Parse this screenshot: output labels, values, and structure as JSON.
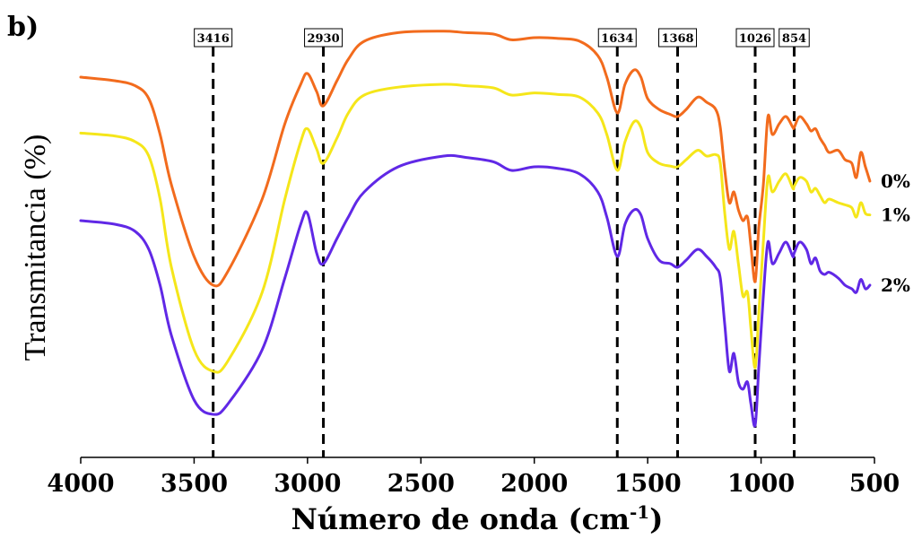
{
  "chart_data": {
    "type": "line",
    "panel_label": "b)",
    "xlabel": "Número de onda (cm",
    "xlabel_sup": "-1",
    "xlabel_end": ")",
    "ylabel": "Transmitancia (%)",
    "xlim": [
      4000,
      500
    ],
    "x_reversed": true,
    "x_ticks": [
      4000,
      3500,
      3000,
      2500,
      2000,
      1500,
      1000,
      500
    ],
    "y_ticks_shown": false,
    "grid": false,
    "legend": "labels at right end of each curve",
    "peak_markers": [
      3416,
      2930,
      1634,
      1368,
      1026,
      854
    ],
    "series": [
      {
        "name": "0%",
        "color": "#f26b1d",
        "x": [
          4000,
          3850,
          3760,
          3700,
          3650,
          3600,
          3500,
          3416,
          3350,
          3200,
          3100,
          3030,
          3000,
          2960,
          2930,
          2870,
          2820,
          2750,
          2600,
          2400,
          2300,
          2180,
          2100,
          2000,
          1900,
          1800,
          1720,
          1680,
          1634,
          1600,
          1560,
          1530,
          1500,
          1450,
          1400,
          1368,
          1330,
          1280,
          1240,
          1200,
          1180,
          1160,
          1140,
          1120,
          1100,
          1080,
          1060,
          1045,
          1026,
          1010,
          990,
          970,
          950,
          920,
          890,
          860,
          854,
          830,
          800,
          780,
          760,
          740,
          720,
          700,
          660,
          630,
          600,
          580,
          560,
          540,
          520
        ],
        "y": [
          93.0,
          92.5,
          91.8,
          90.0,
          85.0,
          78.0,
          68.0,
          64.0,
          66.0,
          76.0,
          86.5,
          92.0,
          93.5,
          91.0,
          89.0,
          92.5,
          95.5,
          98.0,
          99.2,
          99.4,
          99.2,
          99.0,
          98.2,
          98.5,
          98.4,
          98.0,
          96.0,
          93.0,
          88.0,
          92.0,
          94.0,
          93.0,
          90.0,
          88.5,
          87.8,
          87.5,
          88.5,
          90.2,
          89.5,
          88.5,
          86.0,
          80.0,
          75.5,
          77.0,
          74.5,
          73.0,
          73.5,
          69.5,
          64.5,
          72.0,
          78.0,
          87.5,
          85.0,
          86.5,
          87.5,
          86.0,
          86.0,
          87.5,
          86.5,
          85.5,
          85.8,
          84.5,
          83.5,
          82.5,
          82.8,
          81.5,
          81.0,
          79.0,
          82.5,
          80.5,
          78.5
        ]
      },
      {
        "name": "1%",
        "color": "#f5e61a",
        "x": [
          4000,
          3850,
          3760,
          3700,
          3650,
          3600,
          3500,
          3416,
          3350,
          3200,
          3100,
          3030,
          3000,
          2960,
          2930,
          2870,
          2820,
          2750,
          2600,
          2400,
          2300,
          2180,
          2100,
          2000,
          1900,
          1800,
          1720,
          1680,
          1634,
          1600,
          1560,
          1530,
          1500,
          1450,
          1400,
          1368,
          1330,
          1280,
          1240,
          1200,
          1180,
          1160,
          1140,
          1120,
          1100,
          1080,
          1060,
          1045,
          1026,
          1010,
          990,
          970,
          950,
          920,
          890,
          860,
          854,
          830,
          800,
          780,
          760,
          740,
          720,
          700,
          660,
          630,
          600,
          580,
          560,
          540,
          520
        ],
        "y": [
          85.2,
          84.8,
          84.0,
          82.0,
          76.0,
          66.5,
          55.0,
          52.0,
          53.5,
          63.0,
          76.0,
          84.0,
          85.8,
          83.0,
          81.0,
          84.5,
          88.0,
          90.5,
          91.6,
          92.0,
          91.8,
          91.5,
          90.5,
          90.8,
          90.6,
          90.2,
          88.0,
          85.0,
          80.0,
          84.0,
          86.8,
          86.0,
          82.5,
          81.0,
          80.6,
          80.5,
          81.5,
          82.8,
          82.0,
          82.2,
          81.0,
          74.0,
          69.0,
          71.5,
          67.0,
          62.5,
          63.0,
          58.0,
          52.5,
          60.0,
          70.0,
          79.0,
          77.0,
          78.5,
          79.5,
          77.5,
          77.8,
          79.0,
          78.5,
          77.0,
          77.5,
          76.5,
          75.5,
          76.0,
          75.5,
          75.2,
          74.8,
          73.5,
          75.5,
          74.0,
          73.8
        ]
      },
      {
        "name": "2%",
        "color": "#6028e6",
        "x": [
          4000,
          3850,
          3760,
          3700,
          3650,
          3600,
          3500,
          3416,
          3350,
          3200,
          3100,
          3030,
          3000,
          2960,
          2930,
          2870,
          2820,
          2750,
          2600,
          2400,
          2300,
          2180,
          2100,
          2000,
          1900,
          1800,
          1720,
          1680,
          1634,
          1600,
          1560,
          1530,
          1500,
          1450,
          1400,
          1368,
          1330,
          1280,
          1240,
          1200,
          1180,
          1160,
          1140,
          1120,
          1100,
          1080,
          1060,
          1045,
          1026,
          1010,
          990,
          970,
          950,
          920,
          890,
          860,
          854,
          830,
          800,
          780,
          760,
          740,
          720,
          700,
          660,
          630,
          600,
          580,
          560,
          540,
          520
        ],
        "y": [
          73.0,
          72.5,
          71.5,
          69.0,
          64.0,
          57.0,
          48.0,
          46.0,
          47.5,
          55.0,
          65.0,
          72.5,
          74.0,
          68.5,
          67.0,
          70.5,
          73.5,
          77.0,
          80.5,
          82.0,
          81.8,
          81.2,
          80.0,
          80.5,
          80.3,
          79.5,
          77.0,
          73.5,
          68.0,
          72.5,
          74.5,
          73.8,
          70.5,
          67.5,
          67.0,
          66.5,
          67.5,
          69.0,
          68.0,
          66.5,
          65.0,
          58.5,
          52.0,
          54.5,
          50.5,
          49.5,
          50.5,
          47.5,
          44.5,
          52.5,
          62.5,
          70.0,
          67.0,
          68.5,
          70.0,
          68.0,
          68.5,
          70.0,
          69.0,
          67.0,
          67.8,
          66.0,
          65.5,
          65.8,
          65.0,
          64.0,
          63.5,
          63.0,
          64.8,
          63.5,
          64.0
        ]
      }
    ]
  }
}
